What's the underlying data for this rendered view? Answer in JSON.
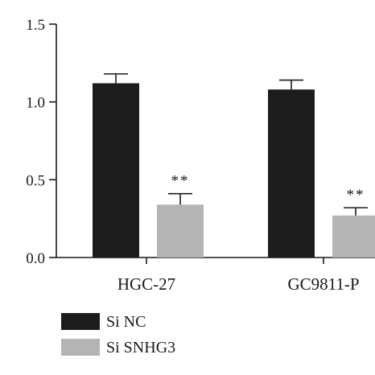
{
  "chart_data": {
    "type": "bar",
    "title": "",
    "xlabel": "",
    "ylabel": "",
    "ylim": [
      0,
      1.5
    ],
    "yticks": [
      "0.0",
      "0.5",
      "1.0",
      "1.5"
    ],
    "categories": [
      "HGC-27",
      "GC9811-P"
    ],
    "series": [
      {
        "name": "Si NC",
        "color": "#1c1c1c",
        "values": [
          1.12,
          1.08
        ],
        "errors": [
          0.06,
          0.06
        ],
        "significance": [
          "",
          ""
        ]
      },
      {
        "name": "Si SNHG3",
        "color": "#b4b4b4",
        "values": [
          0.34,
          0.27
        ],
        "errors": [
          0.07,
          0.05
        ],
        "significance": [
          "**",
          "**"
        ]
      }
    ],
    "legend_position": "bottom-left"
  }
}
